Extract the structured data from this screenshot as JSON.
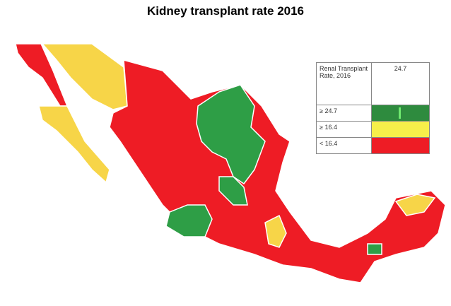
{
  "header": {
    "title": "Kidney transplant rate 2016"
  },
  "legend": {
    "header_label": "Renal Transplant Rate, 2016",
    "header_value": "24.7",
    "rows": [
      {
        "label": "≥ 24.7",
        "color": "#2e8b3e"
      },
      {
        "label": "≥ 16.4",
        "color": "#f7ef4a"
      },
      {
        "label": "< 16.4",
        "color": "#ee1c25"
      }
    ]
  }
}
